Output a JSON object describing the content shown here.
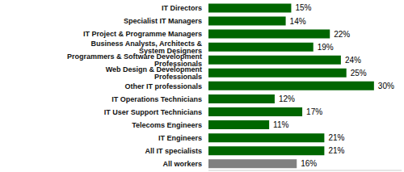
{
  "chart_data": {
    "type": "bar",
    "orientation": "horizontal",
    "categories": [
      "IT Directors",
      "Specialist IT Managers",
      "IT Project & Programme Managers",
      "Business Analysts, Architects & System Designers",
      "Programmers & Software Development Professionals",
      "Web Design & Development Professionals",
      "Other IT professionals",
      "IT Operations Technicians",
      "IT User Support Technicians",
      "Telecoms Engineers",
      "IT Engineers",
      "All IT specialists",
      "All workers"
    ],
    "values": [
      15,
      14,
      22,
      19,
      24,
      25,
      30,
      12,
      17,
      11,
      21,
      21,
      16
    ],
    "value_labels": [
      "15%",
      "14%",
      "22%",
      "19%",
      "24%",
      "25%",
      "30%",
      "12%",
      "17%",
      "11%",
      "21%",
      "21%",
      "16%"
    ],
    "colors": [
      "#006600",
      "#006600",
      "#006600",
      "#006600",
      "#006600",
      "#006600",
      "#006600",
      "#006600",
      "#006600",
      "#006600",
      "#006600",
      "#006600",
      "#808080"
    ],
    "xlim": [
      0,
      35
    ],
    "grid": false,
    "data_labels": true,
    "tick_labels": "y"
  }
}
